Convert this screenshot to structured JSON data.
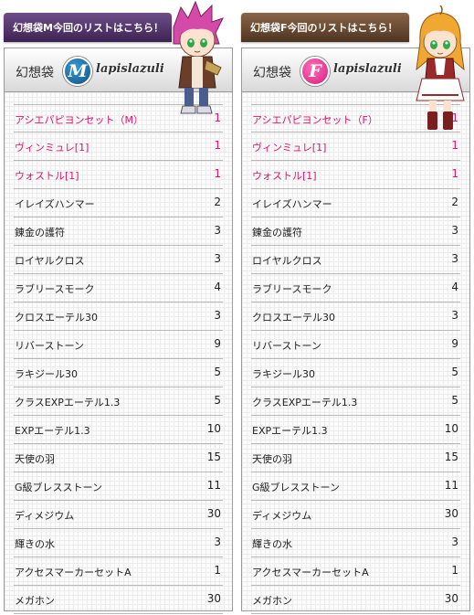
{
  "panels": {
    "m": {
      "banner": "幻想袋M今回のリストはこちら！",
      "title": "幻想袋",
      "badge": "M",
      "brand": "lapislazuli",
      "accent": "#1a6aa6",
      "items": [
        {
          "name": "アシエパピヨンセット（M）",
          "qty": "1",
          "highlight": true
        },
        {
          "name": "ヴィンミュレ[1]",
          "qty": "1",
          "highlight": true
        },
        {
          "name": "ウォストル[1]",
          "qty": "1",
          "highlight": true
        },
        {
          "name": "イレイズハンマー",
          "qty": "2",
          "highlight": false
        },
        {
          "name": "錬金の護符",
          "qty": "3",
          "highlight": false
        },
        {
          "name": "ロイヤルクロス",
          "qty": "3",
          "highlight": false
        },
        {
          "name": "ラブリースモーク",
          "qty": "4",
          "highlight": false
        },
        {
          "name": "クロスエーテル30",
          "qty": "3",
          "highlight": false
        },
        {
          "name": "リバーストーン",
          "qty": "9",
          "highlight": false
        },
        {
          "name": "ラキジール30",
          "qty": "5",
          "highlight": false
        },
        {
          "name": "クラスEXPエーテル1.3",
          "qty": "5",
          "highlight": false
        },
        {
          "name": "EXPエーテル1.3",
          "qty": "10",
          "highlight": false
        },
        {
          "name": "天使の羽",
          "qty": "15",
          "highlight": false
        },
        {
          "name": "G級ブレスストーン",
          "qty": "11",
          "highlight": false
        },
        {
          "name": "ディメジウム",
          "qty": "30",
          "highlight": false
        },
        {
          "name": "輝きの水",
          "qty": "3",
          "highlight": false
        },
        {
          "name": "アクセスマーカーセットA",
          "qty": "1",
          "highlight": false
        },
        {
          "name": "メガホン",
          "qty": "30",
          "highlight": false
        }
      ]
    },
    "f": {
      "banner": "幻想袋F今回のリストはこちら！",
      "title": "幻想袋",
      "badge": "F",
      "brand": "lapislazuli",
      "accent": "#e0126d",
      "items": [
        {
          "name": "アシエパピヨンセット（F）",
          "qty": "1",
          "highlight": true
        },
        {
          "name": "ヴィンミュレ[1]",
          "qty": "1",
          "highlight": true
        },
        {
          "name": "ウォストル[1]",
          "qty": "1",
          "highlight": true
        },
        {
          "name": "イレイズハンマー",
          "qty": "2",
          "highlight": false
        },
        {
          "name": "錬金の護符",
          "qty": "3",
          "highlight": false
        },
        {
          "name": "ロイヤルクロス",
          "qty": "3",
          "highlight": false
        },
        {
          "name": "ラブリースモーク",
          "qty": "4",
          "highlight": false
        },
        {
          "name": "クロスエーテル30",
          "qty": "3",
          "highlight": false
        },
        {
          "name": "リバーストーン",
          "qty": "9",
          "highlight": false
        },
        {
          "name": "ラキジール30",
          "qty": "5",
          "highlight": false
        },
        {
          "name": "クラスEXPエーテル1.3",
          "qty": "5",
          "highlight": false
        },
        {
          "name": "EXPエーテル1.3",
          "qty": "10",
          "highlight": false
        },
        {
          "name": "天使の羽",
          "qty": "15",
          "highlight": false
        },
        {
          "name": "G級ブレスストーン",
          "qty": "11",
          "highlight": false
        },
        {
          "name": "ディメジウム",
          "qty": "30",
          "highlight": false
        },
        {
          "name": "輝きの水",
          "qty": "3",
          "highlight": false
        },
        {
          "name": "アクセスマーカーセットA",
          "qty": "1",
          "highlight": false
        },
        {
          "name": "メガホン",
          "qty": "30",
          "highlight": false
        }
      ]
    }
  },
  "colors": {
    "highlight_text": "#e0126d",
    "text": "#222222"
  }
}
